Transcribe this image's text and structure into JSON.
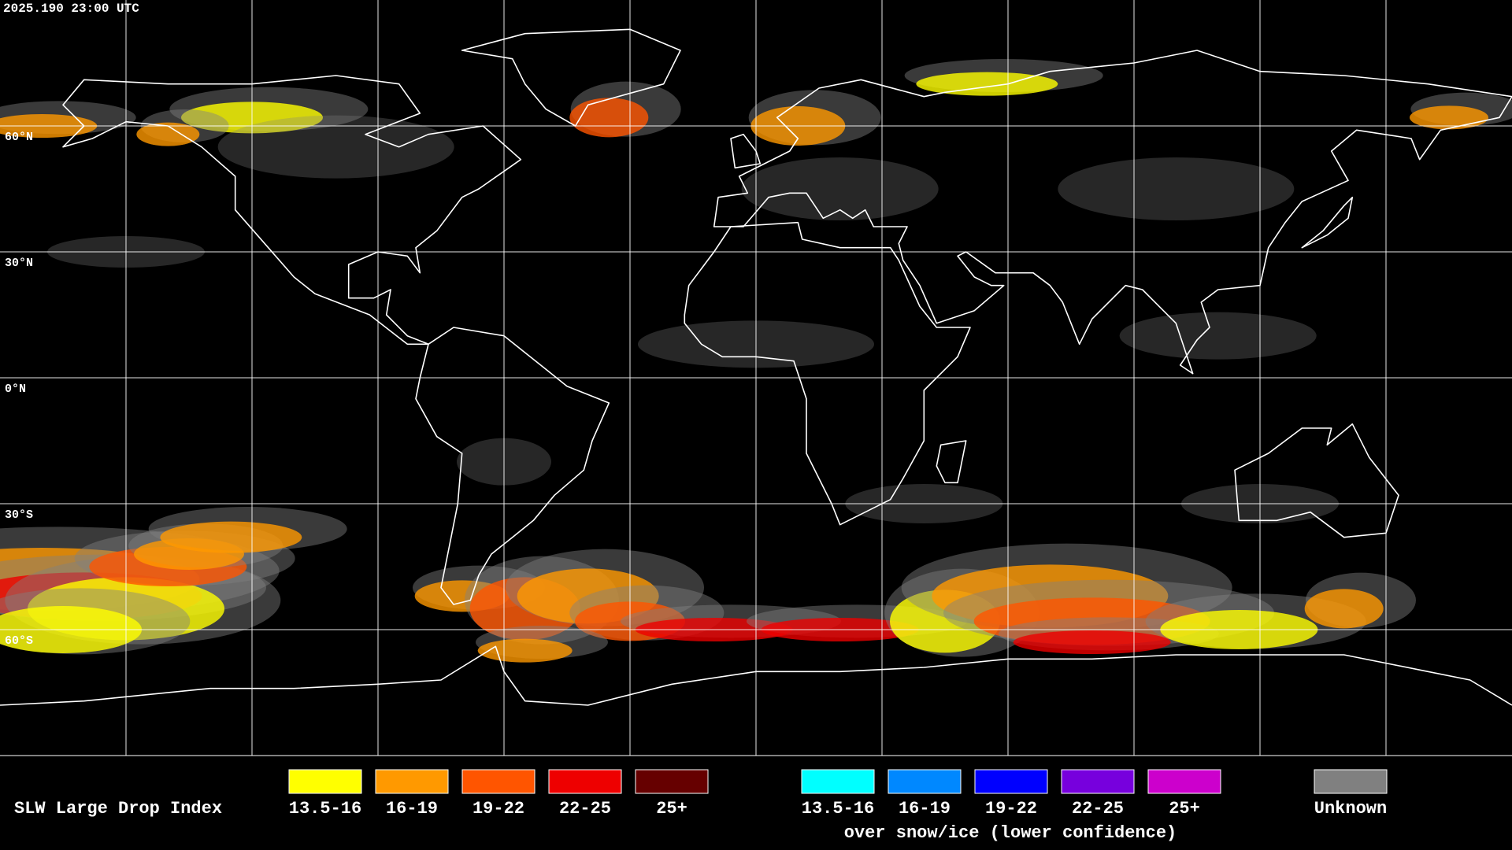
{
  "header": {
    "timestamp": "2025.190 23:00 UTC"
  },
  "map": {
    "lat_labels": [
      "60°N",
      "30°N",
      "0°N",
      "30°S",
      "60°S"
    ]
  },
  "legend": {
    "title": "SLW Large Drop Index",
    "liquid": [
      {
        "label": "13.5-16",
        "color": "#ffff00"
      },
      {
        "label": "16-19",
        "color": "#ff9900"
      },
      {
        "label": "19-22",
        "color": "#ff5500"
      },
      {
        "label": "22-25",
        "color": "#ee0000"
      },
      {
        "label": "25+",
        "color": "#660000"
      }
    ],
    "snow_ice": [
      {
        "label": "13.5-16",
        "color": "#00ffff"
      },
      {
        "label": "16-19",
        "color": "#0088ff"
      },
      {
        "label": "19-22",
        "color": "#0000ff"
      },
      {
        "label": "22-25",
        "color": "#7700dd"
      },
      {
        "label": "25+",
        "color": "#cc00cc"
      }
    ],
    "snow_ice_note": "over snow/ice (lower confidence)",
    "unknown": {
      "label": "Unknown",
      "color": "#808080"
    }
  }
}
